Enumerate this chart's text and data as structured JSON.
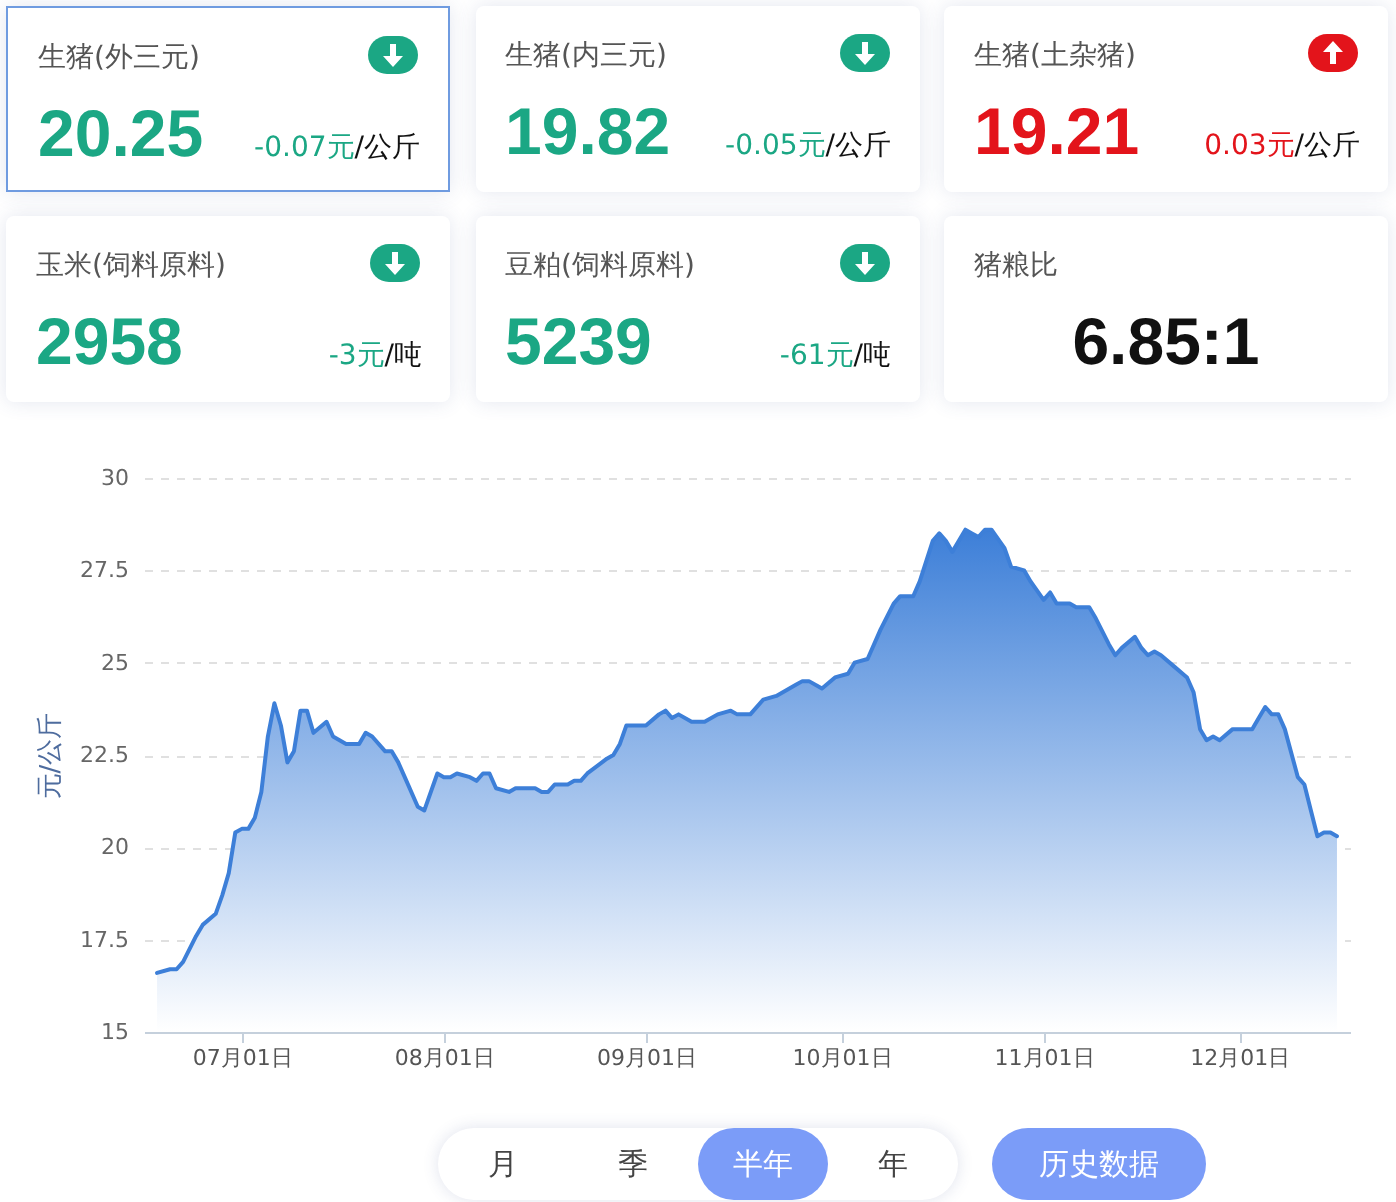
{
  "chart_data": [
    {
      "type": "other",
      "title": "生猪(外三元)",
      "annotations": [
        "20.25",
        "-0.07元/公斤"
      ],
      "colors": [
        "#1ba784"
      ]
    },
    {
      "type": "other",
      "title": "生猪(内三元)",
      "annotations": [
        "19.82",
        "-0.05元/公斤"
      ],
      "colors": [
        "#1ba784"
      ]
    },
    {
      "type": "other",
      "title": "生猪(土杂猪)",
      "annotations": [
        "19.21",
        "0.03元/公斤"
      ],
      "colors": [
        "#e3141b"
      ]
    },
    {
      "type": "other",
      "title": "玉米(饲料原料)",
      "annotations": [
        "2958",
        "-3元/吨"
      ],
      "colors": [
        "#1ba784"
      ]
    },
    {
      "type": "other",
      "title": "豆粕(饲料原料)",
      "annotations": [
        "5239",
        "-61元/吨"
      ],
      "colors": [
        "#1ba784"
      ]
    },
    {
      "type": "other",
      "title": "猪粮比",
      "annotations": [
        "6.85:1"
      ],
      "colors": [
        "#111111"
      ]
    },
    {
      "type": "area",
      "ylabel": "元/公斤",
      "xlim": [
        "--06-16",
        "--12-18"
      ],
      "xticks": [
        {
          "value": "--07-01",
          "label": "07月01日"
        },
        {
          "value": "--08-01",
          "label": "08月01日"
        },
        {
          "value": "--09-01",
          "label": "09月01日"
        },
        {
          "value": "--10-01",
          "label": "10月01日"
        },
        {
          "value": "--11-01",
          "label": "11月01日"
        },
        {
          "value": "--12-01",
          "label": "12月01日"
        }
      ],
      "ylim": [
        15,
        30
      ],
      "yticks": [
        15,
        17.5,
        20,
        22.5,
        25,
        27.5,
        30
      ],
      "grid": "y",
      "x": [
        "--06-18",
        "--06-20",
        "--06-21",
        "--06-22",
        "--06-24",
        "--06-25",
        "--06-27",
        "--06-28",
        "--06-29",
        "--06-30",
        "--07-01",
        "--07-02",
        "--07-03",
        "--07-04",
        "--07-05",
        "--07-06",
        "--07-07",
        "--07-08",
        "--07-09",
        "--07-10",
        "--07-11",
        "--07-12",
        "--07-14",
        "--07-15",
        "--07-17",
        "--07-18",
        "--07-19",
        "--07-20",
        "--07-21",
        "--07-23",
        "--07-24",
        "--07-25",
        "--07-26",
        "--07-28",
        "--07-29",
        "--07-31",
        "--08-01",
        "--08-02",
        "--08-03",
        "--08-05",
        "--08-06",
        "--08-07",
        "--08-08",
        "--08-09",
        "--08-11",
        "--08-12",
        "--08-14",
        "--08-15",
        "--08-16",
        "--08-17",
        "--08-18",
        "--08-20",
        "--08-21",
        "--08-22",
        "--08-23",
        "--08-26",
        "--08-27",
        "--08-28",
        "--08-29",
        "--08-31",
        "--09-01",
        "--09-03",
        "--09-04",
        "--09-05",
        "--09-06",
        "--09-08",
        "--09-09",
        "--09-10",
        "--09-12",
        "--09-14",
        "--09-15",
        "--09-17",
        "--09-19",
        "--09-21",
        "--09-23",
        "--09-24",
        "--09-25",
        "--09-26",
        "--09-28",
        "--09-30",
        "--10-02",
        "--10-03",
        "--10-05",
        "--10-07",
        "--10-09",
        "--10-10",
        "--10-12",
        "--10-13",
        "--10-15",
        "--10-16",
        "--10-17",
        "--10-18",
        "--10-20",
        "--10-21",
        "--10-22",
        "--10-23",
        "--10-24",
        "--10-26",
        "--10-27",
        "--10-29",
        "--10-30",
        "--11-01",
        "--11-02",
        "--11-03",
        "--11-05",
        "--11-06",
        "--11-07",
        "--11-08",
        "--11-09",
        "--11-11",
        "--11-12",
        "--11-13",
        "--11-15",
        "--11-16",
        "--11-17",
        "--11-18",
        "--11-19",
        "--11-21",
        "--11-23",
        "--11-24",
        "--11-25",
        "--11-26",
        "--11-27",
        "--11-28",
        "--11-30",
        "--12-02",
        "--12-03",
        "--12-04",
        "--12-05",
        "--12-06",
        "--12-07",
        "--12-08",
        "--12-10",
        "--12-11",
        "--12-12",
        "--12-13",
        "--12-14",
        "--12-15",
        "--12-16"
      ],
      "series": [
        {
          "color": "#3d7fd8",
          "values": [
            16.6,
            16.7,
            16.7,
            16.9,
            17.6,
            17.9,
            18.2,
            18.7,
            19.3,
            20.4,
            20.5,
            20.5,
            20.8,
            21.5,
            23.0,
            23.9,
            23.3,
            22.3,
            22.6,
            23.7,
            23.7,
            23.1,
            23.4,
            23.0,
            22.8,
            22.8,
            22.8,
            23.1,
            23.0,
            22.6,
            22.6,
            22.3,
            21.9,
            21.1,
            21.0,
            22.0,
            21.9,
            21.9,
            22.0,
            21.9,
            21.8,
            22.0,
            22.0,
            21.6,
            21.5,
            21.6,
            21.6,
            21.6,
            21.5,
            21.5,
            21.7,
            21.7,
            21.8,
            21.8,
            22.0,
            22.4,
            22.5,
            22.8,
            23.3,
            23.3,
            23.3,
            23.6,
            23.7,
            23.5,
            23.6,
            23.4,
            23.4,
            23.4,
            23.6,
            23.7,
            23.6,
            23.6,
            24.0,
            24.1,
            24.3,
            24.4,
            24.5,
            24.5,
            24.3,
            24.6,
            24.7,
            25.0,
            25.1,
            25.9,
            26.6,
            26.8,
            26.8,
            27.2,
            28.3,
            28.5,
            28.3,
            28.0,
            28.6,
            28.5,
            28.4,
            28.6,
            28.6,
            28.1,
            27.6,
            27.5,
            27.2,
            26.7,
            26.9,
            26.6,
            26.6,
            26.5,
            26.5,
            26.5,
            26.2,
            25.5,
            25.2,
            25.4,
            25.7,
            25.4,
            25.2,
            25.3,
            25.2,
            24.9,
            24.6,
            24.2,
            23.2,
            22.9,
            23.0,
            22.9,
            23.2,
            23.2,
            23.2,
            23.5,
            23.8,
            23.6,
            23.6,
            23.2,
            21.9,
            21.7,
            21.0,
            20.3,
            20.4,
            20.4,
            20.3
          ]
        }
      ]
    },
    {
      "type": "other",
      "annotations": [
        "月",
        "季",
        "半年",
        "年"
      ],
      "colors": [
        null,
        null,
        "#7b9cf8",
        null
      ]
    },
    {
      "type": "other",
      "annotations": [
        "历史数据"
      ],
      "colors": [
        "#7b9cf8"
      ]
    }
  ]
}
